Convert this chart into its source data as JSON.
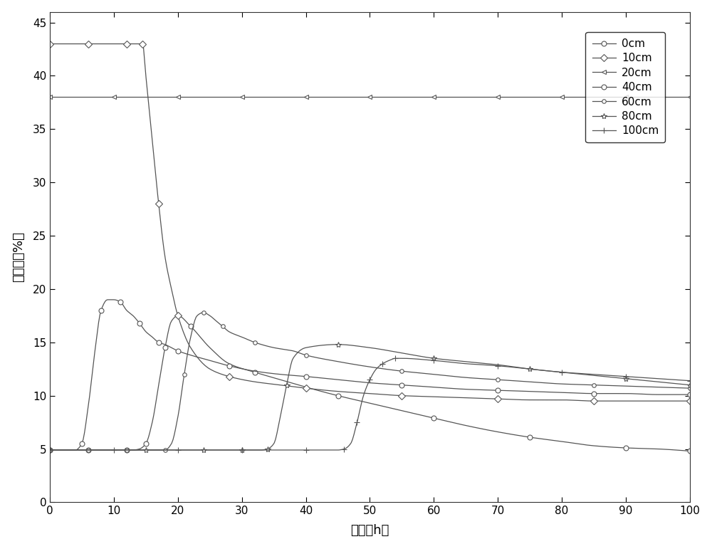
{
  "title": "",
  "xlabel": "时间（h）",
  "ylabel": "含水率（%）",
  "xlim": [
    0,
    100
  ],
  "ylim": [
    0,
    46
  ],
  "yticks": [
    0,
    5,
    10,
    15,
    20,
    25,
    30,
    35,
    40,
    45
  ],
  "xticks": [
    0,
    10,
    20,
    30,
    40,
    50,
    60,
    70,
    80,
    90,
    100
  ],
  "background_color": "#ffffff",
  "line_color": "#555555",
  "legend_labels": [
    "0cm",
    "10cm",
    "20cm",
    "40cm",
    "60cm",
    "80cm",
    "100cm"
  ],
  "curves": {
    "0cm": {
      "x": [
        0,
        2,
        4,
        6,
        8,
        10,
        12,
        13,
        14,
        15,
        16,
        17,
        18,
        19,
        20,
        22,
        25,
        28,
        32,
        36,
        40,
        45,
        50,
        55,
        60,
        65,
        70,
        75,
        80,
        85,
        90,
        95,
        100
      ],
      "y": [
        4.9,
        4.9,
        4.9,
        4.9,
        4.9,
        4.9,
        4.9,
        4.9,
        5.0,
        5.5,
        7.5,
        11.0,
        14.5,
        17.0,
        17.5,
        16.5,
        14.5,
        13.0,
        12.2,
        11.5,
        10.8,
        10.0,
        9.3,
        8.6,
        7.9,
        7.2,
        6.6,
        6.1,
        5.7,
        5.3,
        5.1,
        5.0,
        4.8
      ],
      "marker": "o",
      "markevery": 2,
      "markersize": 5
    },
    "10cm": {
      "x": [
        0,
        2,
        4,
        6,
        8,
        10,
        12,
        13,
        14,
        14.5,
        15,
        16,
        17,
        18,
        19,
        20,
        22,
        25,
        28,
        32,
        36,
        40,
        45,
        50,
        55,
        60,
        65,
        70,
        75,
        80,
        85,
        90,
        95,
        100
      ],
      "y": [
        43.0,
        43.0,
        43.0,
        43.0,
        43.0,
        43.0,
        43.0,
        43.0,
        43.0,
        43.0,
        40.0,
        34.0,
        28.0,
        23.0,
        20.0,
        17.5,
        14.5,
        12.5,
        11.8,
        11.3,
        11.0,
        10.7,
        10.4,
        10.2,
        10.0,
        9.9,
        9.8,
        9.7,
        9.6,
        9.6,
        9.5,
        9.5,
        9.5,
        9.5
      ],
      "marker": "D",
      "markevery": 2,
      "markersize": 5
    },
    "20cm": {
      "x": [
        0,
        5,
        10,
        15,
        20,
        25,
        30,
        35,
        40,
        45,
        50,
        55,
        60,
        65,
        70,
        75,
        80,
        85,
        90,
        95,
        100
      ],
      "y": [
        38.0,
        38.0,
        38.0,
        38.0,
        38.0,
        38.0,
        38.0,
        38.0,
        38.0,
        38.0,
        38.0,
        38.0,
        38.0,
        38.0,
        38.0,
        38.0,
        38.0,
        38.0,
        38.0,
        38.0,
        38.0
      ],
      "marker": "<",
      "markevery": 2,
      "markersize": 5
    },
    "40cm": {
      "x": [
        0,
        2,
        4,
        5,
        6,
        7,
        8,
        9,
        10,
        11,
        12,
        13,
        14,
        15,
        16,
        17,
        18,
        19,
        20,
        22,
        25,
        28,
        32,
        36,
        40,
        45,
        50,
        55,
        60,
        65,
        70,
        75,
        80,
        85,
        90,
        95,
        100
      ],
      "y": [
        4.9,
        4.9,
        4.9,
        5.5,
        9.0,
        14.0,
        18.0,
        19.0,
        19.0,
        18.8,
        18.0,
        17.5,
        16.8,
        16.0,
        15.5,
        15.0,
        14.8,
        14.5,
        14.2,
        13.8,
        13.3,
        12.8,
        12.3,
        12.0,
        11.8,
        11.5,
        11.2,
        11.0,
        10.8,
        10.6,
        10.5,
        10.4,
        10.3,
        10.2,
        10.2,
        10.1,
        10.1
      ],
      "marker": "o",
      "markevery": 2,
      "markersize": 5
    },
    "60cm": {
      "x": [
        0,
        2,
        4,
        6,
        8,
        10,
        12,
        14,
        16,
        18,
        19,
        20,
        21,
        22,
        23,
        24,
        25,
        26,
        27,
        28,
        30,
        32,
        35,
        38,
        40,
        45,
        50,
        55,
        60,
        65,
        70,
        75,
        80,
        85,
        90,
        95,
        100
      ],
      "y": [
        4.9,
        4.9,
        4.9,
        4.9,
        4.9,
        4.9,
        4.9,
        4.9,
        4.9,
        4.9,
        5.5,
        8.0,
        12.0,
        15.5,
        17.5,
        17.8,
        17.5,
        17.0,
        16.5,
        16.0,
        15.5,
        15.0,
        14.5,
        14.2,
        13.8,
        13.2,
        12.7,
        12.3,
        12.0,
        11.7,
        11.5,
        11.3,
        11.1,
        11.0,
        10.9,
        10.8,
        10.7
      ],
      "marker": "o",
      "markevery": 2,
      "markersize": 4
    },
    "80cm": {
      "x": [
        0,
        5,
        10,
        15,
        20,
        22,
        24,
        26,
        28,
        30,
        32,
        33,
        34,
        35,
        36,
        37,
        38,
        40,
        45,
        50,
        55,
        60,
        65,
        70,
        75,
        80,
        85,
        90,
        95,
        100
      ],
      "y": [
        4.9,
        4.9,
        4.9,
        4.9,
        4.9,
        4.9,
        4.9,
        4.9,
        4.9,
        4.9,
        4.9,
        4.9,
        5.0,
        5.5,
        8.0,
        11.0,
        13.5,
        14.5,
        14.8,
        14.5,
        14.0,
        13.5,
        13.2,
        12.9,
        12.5,
        12.2,
        11.9,
        11.6,
        11.3,
        11.0
      ],
      "marker": "*",
      "markevery": 2,
      "markersize": 6
    },
    "100cm": {
      "x": [
        0,
        5,
        10,
        15,
        20,
        25,
        30,
        35,
        40,
        45,
        46,
        47,
        48,
        49,
        50,
        51,
        52,
        53,
        54,
        55,
        60,
        65,
        70,
        75,
        80,
        85,
        90,
        95,
        100
      ],
      "y": [
        4.9,
        4.9,
        4.9,
        4.9,
        4.9,
        4.9,
        4.9,
        4.9,
        4.9,
        4.9,
        5.0,
        5.5,
        7.5,
        10.0,
        11.5,
        12.5,
        13.0,
        13.3,
        13.5,
        13.5,
        13.3,
        13.0,
        12.8,
        12.5,
        12.2,
        12.0,
        11.8,
        11.6,
        11.4
      ],
      "marker": "+",
      "markevery": 2,
      "markersize": 6
    }
  }
}
